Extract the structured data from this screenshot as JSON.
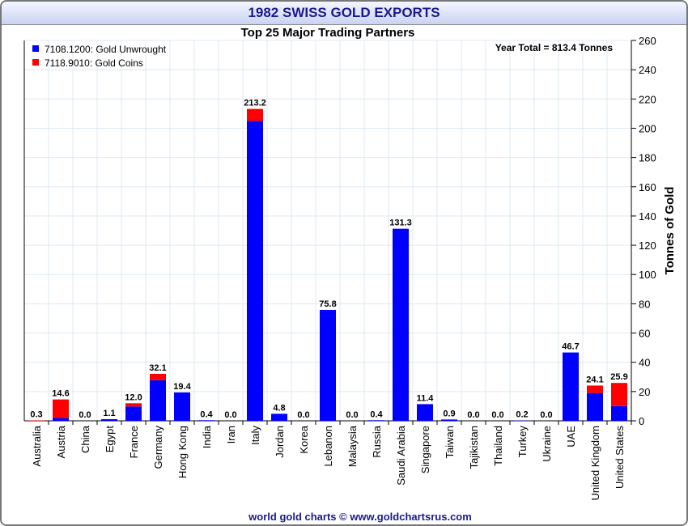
{
  "chart_data": {
    "type": "bar",
    "stacked": true,
    "title": "1982 SWISS GOLD EXPORTS",
    "subtitle": "Top 25 Major Trading Partners",
    "annotation": "Year Total = 813.4 Tonnes",
    "ylabel": "Tonnes of Gold",
    "ylim": [
      0,
      260
    ],
    "ytick_step": 20,
    "grid": true,
    "legend_position": "top-left",
    "footer": "world gold charts © www.goldchartsrus.com",
    "categories": [
      "Australia",
      "Austria",
      "China",
      "Egypt",
      "France",
      "Germany",
      "Hong Kong",
      "India",
      "Iran",
      "Italy",
      "Jordan",
      "Korea",
      "Lebanon",
      "Malaysia",
      "Russia",
      "Saudi Arabia",
      "Singapore",
      "Taiwan",
      "Tajikistan",
      "Thailand",
      "Turkey",
      "Ukraine",
      "UAE",
      "United Kingdom",
      "United States"
    ],
    "totals": [
      "0.3",
      "14.6",
      "0.0",
      "1.1",
      "12.0",
      "32.1",
      "19.4",
      "0.4",
      "0.0",
      "213.2",
      "4.8",
      "0.0",
      "75.8",
      "0.0",
      "0.4",
      "131.3",
      "11.4",
      "0.9",
      "0.0",
      "0.0",
      "0.2",
      "0.0",
      "46.7",
      "24.1",
      "25.9"
    ],
    "series": [
      {
        "name": "7108.1200: Gold Unwrought",
        "color": "#0000ff",
        "values": [
          0,
          1.9,
          0,
          1.1,
          9.8,
          27.8,
          19.4,
          0.4,
          0,
          205.0,
          4.8,
          0,
          75.8,
          0,
          0.4,
          131.3,
          11.4,
          0.9,
          0,
          0,
          0.2,
          0,
          46.7,
          19.0,
          10.1
        ]
      },
      {
        "name": "7118.9010: Gold Coins",
        "color": "#ff0000",
        "values": [
          0.3,
          12.7,
          0,
          0,
          2.2,
          4.3,
          0,
          0,
          0,
          8.2,
          0,
          0,
          0,
          0,
          0,
          0,
          0,
          0,
          0,
          0,
          0,
          0,
          0,
          5.1,
          15.8
        ]
      }
    ]
  }
}
